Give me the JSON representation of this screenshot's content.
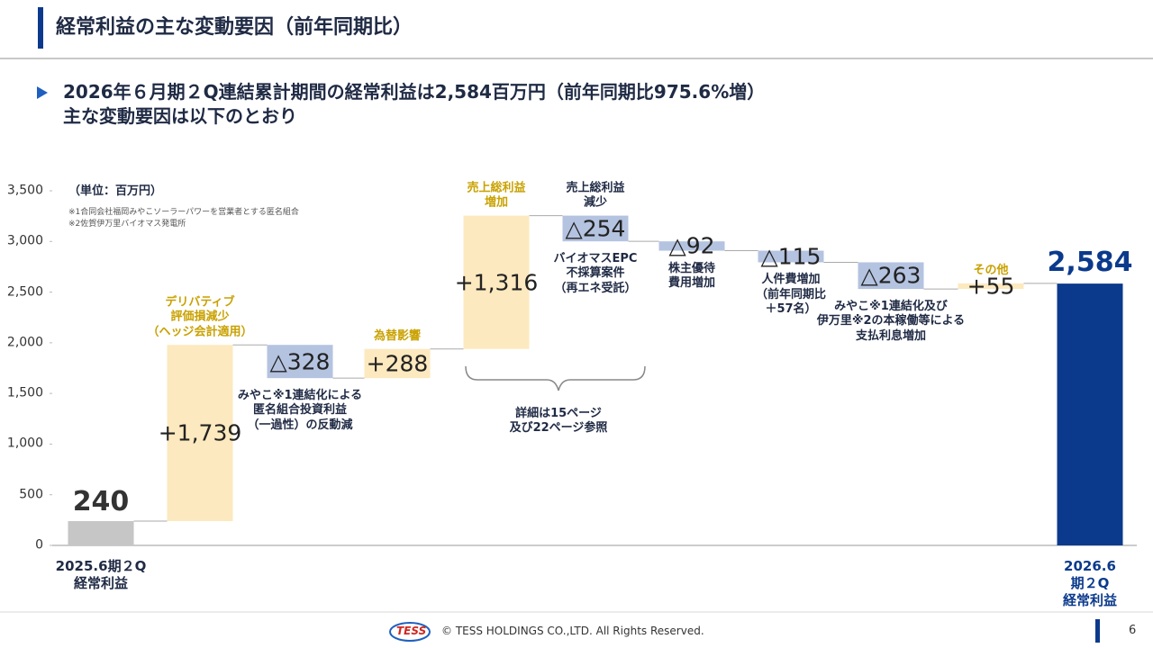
{
  "header": {
    "title": "経常利益の主な変動要因（前年同期比）"
  },
  "summary": [
    "2026年６月期２Q連結累計期間の経常利益は2,584百万円（前年同期比975.6%増）",
    "主な変動要因は以下のとおり"
  ],
  "chart_data": {
    "type": "waterfall",
    "unit_label": "（単位：百万円）",
    "notes": [
      "※1合同会社福岡みやこソーラーパワーを営業者とする匿名組合",
      "※2佐賀伊万里バイオマス発電所"
    ],
    "categories": [
      "2025.6期２Q\n経常利益",
      null,
      null,
      null,
      null,
      null,
      null,
      null,
      null,
      null,
      "2026.6期２Q\n経常利益"
    ],
    "values": [
      240,
      1739,
      -328,
      288,
      1316,
      -254,
      -92,
      -115,
      -263,
      55,
      2584
    ],
    "value_labels": [
      "240",
      "+1,739",
      "△328",
      "+288",
      "+1,316",
      "△254",
      "△92",
      "△115",
      "△263",
      "+55",
      "2,584"
    ],
    "measures": [
      "total",
      "relative",
      "relative",
      "relative",
      "relative",
      "relative",
      "relative",
      "relative",
      "relative",
      "relative",
      "total"
    ],
    "colors": [
      "#c6c6c6",
      "#fde9bf",
      "#b4c3e0",
      "#fde9bf",
      "#fde9bf",
      "#b4c3e0",
      "#b4c3e0",
      "#b4c3e0",
      "#b4c3e0",
      "#fde9bf",
      "#0b3a8c"
    ],
    "annotations_above": [
      null,
      "デリバティブ\n評価損減少\n（ヘッジ会計適用）",
      null,
      "為替影響",
      "売上総利益\n増加",
      "売上総利益\n減少",
      null,
      null,
      null,
      "その他",
      null
    ],
    "annotations_below": [
      null,
      null,
      "みやこ※1連結化による\n匿名組合投資利益\n（一過性）の反動減",
      null,
      null,
      "バイオマスEPC\n不採算案件\n（再エネ受託）",
      "株主優待\n費用増加",
      "人件費増加\n（前年同期比\n＋57名）",
      "みやこ※1連結化及び\n伊万里※2の本稼働等による\n支払利息増加",
      null,
      null
    ],
    "bracket_note": "詳細は15ページ\n及び22ページ参照",
    "ylim": [
      0,
      3500
    ],
    "yticks": [
      0,
      500,
      {
        "value": 1000,
        "label": "1,000"
      },
      {
        "value": 1500,
        "label": "1,500"
      },
      {
        "value": 2000,
        "label": "2,000"
      },
      {
        "value": 2500,
        "label": "2,500"
      },
      {
        "value": 3000,
        "label": "3,000"
      },
      {
        "value": 3500,
        "label": "3,500"
      }
    ]
  },
  "footer": {
    "logo": "TESS",
    "copyright": "© TESS HOLDINGS CO.,LTD. All Rights Reserved.",
    "page": "6"
  }
}
